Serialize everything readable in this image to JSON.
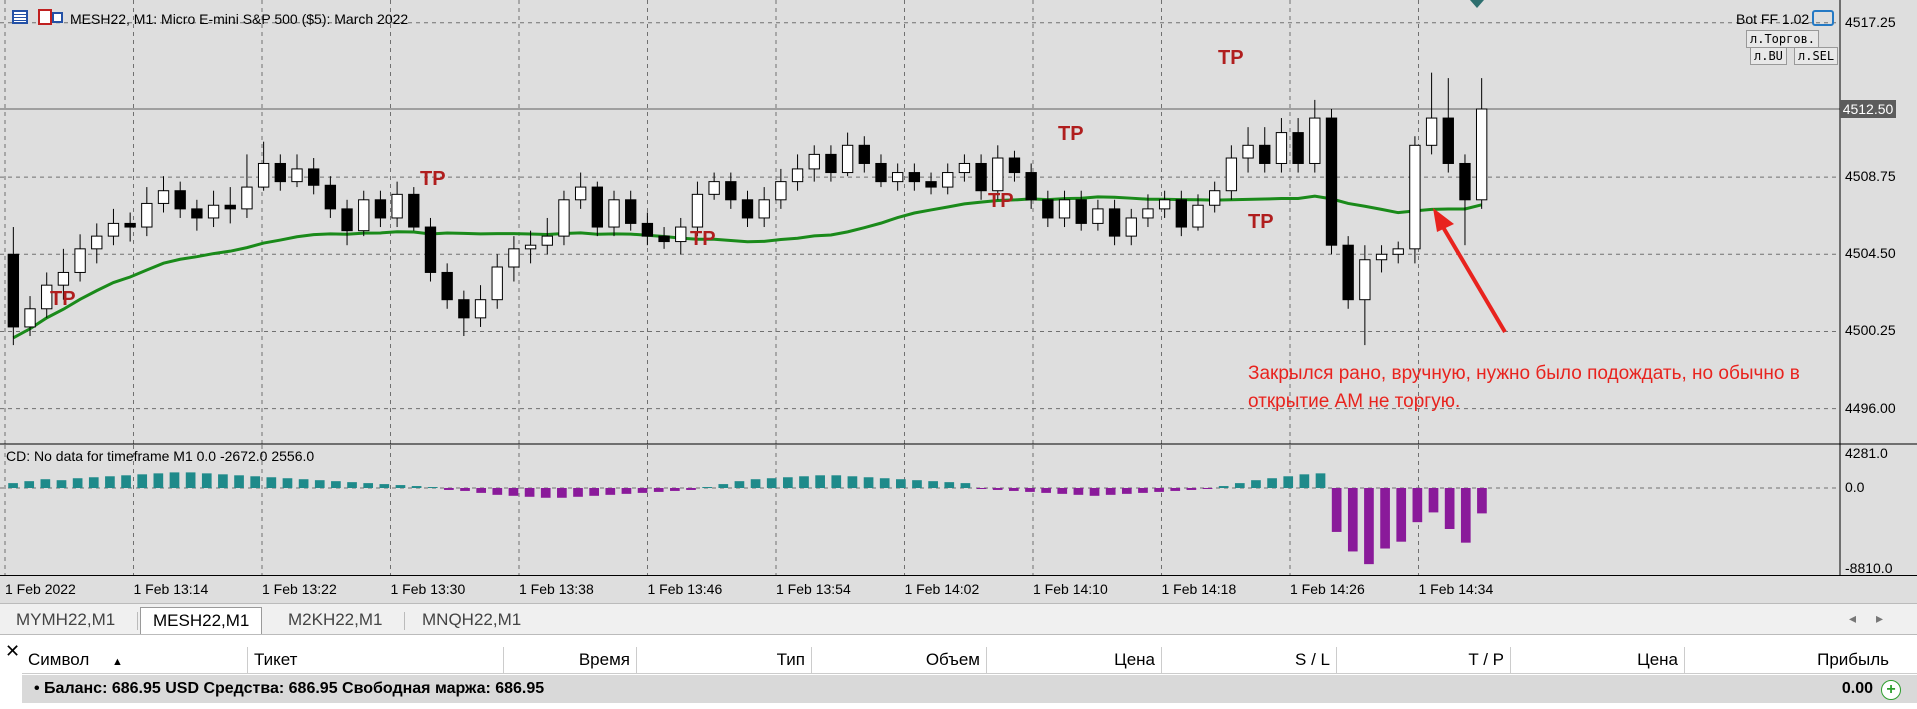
{
  "chart": {
    "title": "MESH22, M1:  Micro E-mini S&P 500 ($5): March 2022",
    "icons": [
      "menu-icon",
      "chart-toolbox-icon"
    ],
    "price_labels": [
      "4517.25",
      "4512.50",
      "4508.75",
      "4504.50",
      "4500.25",
      "4496.00"
    ],
    "current_price": "4512.50",
    "time_labels": [
      "1 Feb 2022",
      "1 Feb 13:14",
      "1 Feb 13:22",
      "1 Feb 13:30",
      "1 Feb 13:38",
      "1 Feb 13:46",
      "1 Feb 13:54",
      "1 Feb 14:02",
      "1 Feb 14:10",
      "1 Feb 14:18",
      "1 Feb 14:26",
      "1 Feb 14:34"
    ],
    "bot": {
      "title": "Bot FF 1.02",
      "btn1": "л.Торгов.",
      "btn2": "л.BU",
      "btn3": "л.SEL"
    },
    "tp_label": "TP",
    "annotation": "Закрылся рано,  вручную, нужно было подождать, но обычно в открытие АМ не торгую.",
    "colors": {
      "bg": "#dedede",
      "grid": "#707070",
      "tp": "#b01e1e",
      "ma_green": "#1a8a1a",
      "ma_gray": "#a0a0a0",
      "hist_pos": "#1f8a8a",
      "hist_neg": "#8a1a9a",
      "annotation": "#e8231e"
    }
  },
  "indicator": {
    "title": "CD: No data for timeframe M1 0.0 -2672.0 2556.0",
    "labels": [
      "4281.0",
      "0.0",
      "-8810.0"
    ]
  },
  "tabs": [
    {
      "label": "MYMH22,M1",
      "active": false
    },
    {
      "label": "MESH22,M1",
      "active": true
    },
    {
      "label": "M2KH22,M1",
      "active": false
    },
    {
      "label": "MNQH22,M1",
      "active": false
    }
  ],
  "terminal": {
    "columns": [
      "Символ",
      "Тикет",
      "Время",
      "Тип",
      "Объем",
      "Цена",
      "S / L",
      "T / P",
      "Цена",
      "Прибыль"
    ],
    "balance": "Баланс: 686.95 USD  Средства: 686.95  Свободная маржа: 686.95",
    "profit": "0.00"
  },
  "chart_data": {
    "type": "candlestick",
    "candles": [
      [
        4504.5,
        4500.5,
        4506.0,
        4499.5
      ],
      [
        4500.5,
        4501.5,
        4502.2,
        4500.0
      ],
      [
        4501.5,
        4502.8,
        4503.5,
        4501.0
      ],
      [
        4502.8,
        4503.5,
        4504.8,
        4502.0
      ],
      [
        4503.5,
        4504.8,
        4505.6,
        4503.0
      ],
      [
        4504.8,
        4505.5,
        4506.2,
        4504.0
      ],
      [
        4505.5,
        4506.2,
        4507.0,
        4505.0
      ],
      [
        4506.2,
        4506.0,
        4506.8,
        4505.2
      ],
      [
        4506.0,
        4507.3,
        4508.2,
        4505.5
      ],
      [
        4507.3,
        4508.0,
        4508.8,
        4506.8
      ],
      [
        4508.0,
        4507.0,
        4508.5,
        4506.5
      ],
      [
        4507.0,
        4506.5,
        4507.5,
        4505.8
      ],
      [
        4506.5,
        4507.2,
        4508.0,
        4506.0
      ],
      [
        4507.2,
        4507.0,
        4508.2,
        4506.2
      ],
      [
        4507.0,
        4508.2,
        4510.0,
        4506.5
      ],
      [
        4508.2,
        4509.5,
        4510.7,
        4508.0
      ],
      [
        4509.5,
        4508.5,
        4510.0,
        4508.0
      ],
      [
        4508.5,
        4509.2,
        4510.0,
        4508.2
      ],
      [
        4509.2,
        4508.3,
        4509.8,
        4507.8
      ],
      [
        4508.3,
        4507.0,
        4508.8,
        4506.5
      ],
      [
        4507.0,
        4505.8,
        4507.5,
        4505.0
      ],
      [
        4505.8,
        4507.5,
        4508.0,
        4505.5
      ],
      [
        4507.5,
        4506.5,
        4508.0,
        4506.0
      ],
      [
        4506.5,
        4507.8,
        4508.5,
        4506.0
      ],
      [
        4507.8,
        4506.0,
        4508.2,
        4505.8
      ],
      [
        4506.0,
        4503.5,
        4506.5,
        4503.0
      ],
      [
        4503.5,
        4502.0,
        4504.0,
        4501.5
      ],
      [
        4502.0,
        4501.0,
        4502.5,
        4500.0
      ],
      [
        4501.0,
        4502.0,
        4502.8,
        4500.5
      ],
      [
        4502.0,
        4503.8,
        4504.5,
        4501.5
      ],
      [
        4503.8,
        4504.8,
        4505.5,
        4503.0
      ],
      [
        4504.8,
        4505.0,
        4505.8,
        4504.0
      ],
      [
        4505.0,
        4505.5,
        4506.5,
        4504.5
      ],
      [
        4505.5,
        4507.5,
        4508.0,
        4505.0
      ],
      [
        4507.5,
        4508.2,
        4509.0,
        4507.0
      ],
      [
        4508.2,
        4506.0,
        4508.5,
        4505.5
      ],
      [
        4506.0,
        4507.5,
        4508.0,
        4505.5
      ],
      [
        4507.5,
        4506.2,
        4508.0,
        4505.8
      ],
      [
        4506.2,
        4505.5,
        4506.8,
        4505.0
      ],
      [
        4505.5,
        4505.2,
        4506.0,
        4504.8
      ],
      [
        4505.2,
        4506.0,
        4506.5,
        4504.5
      ],
      [
        4506.0,
        4507.8,
        4508.5,
        4505.5
      ],
      [
        4507.8,
        4508.5,
        4509.0,
        4507.5
      ],
      [
        4508.5,
        4507.5,
        4509.0,
        4507.0
      ],
      [
        4507.5,
        4506.5,
        4508.0,
        4506.0
      ],
      [
        4506.5,
        4507.5,
        4508.2,
        4506.0
      ],
      [
        4507.5,
        4508.5,
        4509.2,
        4507.0
      ],
      [
        4508.5,
        4509.2,
        4510.0,
        4508.0
      ],
      [
        4509.2,
        4510.0,
        4510.5,
        4508.5
      ],
      [
        4510.0,
        4509.0,
        4510.5,
        4508.5
      ],
      [
        4509.0,
        4510.5,
        4511.2,
        4508.8
      ],
      [
        4510.5,
        4509.5,
        4511.0,
        4509.0
      ],
      [
        4509.5,
        4508.5,
        4510.0,
        4508.2
      ],
      [
        4508.5,
        4509.0,
        4509.5,
        4508.0
      ],
      [
        4509.0,
        4508.5,
        4509.5,
        4508.0
      ],
      [
        4508.5,
        4508.2,
        4509.0,
        4507.8
      ],
      [
        4508.2,
        4509.0,
        4509.5,
        4507.8
      ],
      [
        4509.0,
        4509.5,
        4510.0,
        4508.5
      ],
      [
        4509.5,
        4508.0,
        4510.0,
        4507.5
      ],
      [
        4508.0,
        4509.8,
        4510.5,
        4507.5
      ],
      [
        4509.8,
        4509.0,
        4510.2,
        4508.5
      ],
      [
        4509.0,
        4507.5,
        4509.5,
        4507.0
      ],
      [
        4507.5,
        4506.5,
        4508.0,
        4506.0
      ],
      [
        4506.5,
        4507.5,
        4508.0,
        4506.0
      ],
      [
        4507.5,
        4506.2,
        4508.0,
        4505.8
      ],
      [
        4506.2,
        4507.0,
        4507.5,
        4505.8
      ],
      [
        4507.0,
        4505.5,
        4507.5,
        4505.0
      ],
      [
        4505.5,
        4506.5,
        4507.0,
        4505.0
      ],
      [
        4506.5,
        4507.0,
        4507.8,
        4506.0
      ],
      [
        4507.0,
        4507.5,
        4508.0,
        4506.5
      ],
      [
        4507.5,
        4506.0,
        4508.0,
        4505.5
      ],
      [
        4506.0,
        4507.2,
        4507.8,
        4505.8
      ],
      [
        4507.2,
        4508.0,
        4508.5,
        4506.8
      ],
      [
        4508.0,
        4509.8,
        4510.5,
        4507.5
      ],
      [
        4509.8,
        4510.5,
        4511.5,
        4509.0
      ],
      [
        4510.5,
        4509.5,
        4511.5,
        4509.0
      ],
      [
        4509.5,
        4511.2,
        4512.0,
        4509.0
      ],
      [
        4511.2,
        4509.5,
        4512.0,
        4509.0
      ],
      [
        4509.5,
        4512.0,
        4513.0,
        4509.0
      ],
      [
        4512.0,
        4505.0,
        4512.5,
        4504.5
      ],
      [
        4505.0,
        4502.0,
        4505.5,
        4501.5
      ],
      [
        4502.0,
        4504.2,
        4505.0,
        4499.5
      ],
      [
        4504.2,
        4504.5,
        4505.0,
        4503.5
      ],
      [
        4504.5,
        4504.8,
        4505.2,
        4504.0
      ],
      [
        4504.8,
        4510.5,
        4511.0,
        4504.0
      ],
      [
        4510.5,
        4512.0,
        4514.5,
        4510.0
      ],
      [
        4512.0,
        4509.5,
        4514.2,
        4509.0
      ],
      [
        4509.5,
        4507.5,
        4510.0,
        4505.0
      ],
      [
        4507.5,
        4512.5,
        4514.2,
        4507.0
      ]
    ],
    "histogram": [
      500,
      700,
      900,
      800,
      1000,
      1100,
      1200,
      1300,
      1400,
      1500,
      1600,
      1600,
      1500,
      1400,
      1300,
      1200,
      1100,
      1000,
      900,
      800,
      700,
      600,
      500,
      400,
      300,
      200,
      100,
      -200,
      -300,
      -500,
      -700,
      -800,
      -900,
      -1000,
      -1000,
      -900,
      -800,
      -700,
      -600,
      -500,
      -400,
      -300,
      -200,
      100,
      400,
      700,
      900,
      1000,
      1100,
      1200,
      1300,
      1300,
      1200,
      1100,
      1000,
      900,
      800,
      700,
      600,
      500,
      -100,
      -200,
      -300,
      -400,
      -500,
      -600,
      -700,
      -800,
      -700,
      -600,
      -500,
      -400,
      -300,
      -200,
      -100,
      200,
      500,
      800,
      1000,
      1200,
      1400,
      1500,
      -4500,
      -6500,
      -7800,
      -6200,
      -5500,
      -3500,
      -2500,
      -4200,
      -5600,
      -2600
    ],
    "ylim": [
      4494.0,
      4518.5
    ]
  }
}
